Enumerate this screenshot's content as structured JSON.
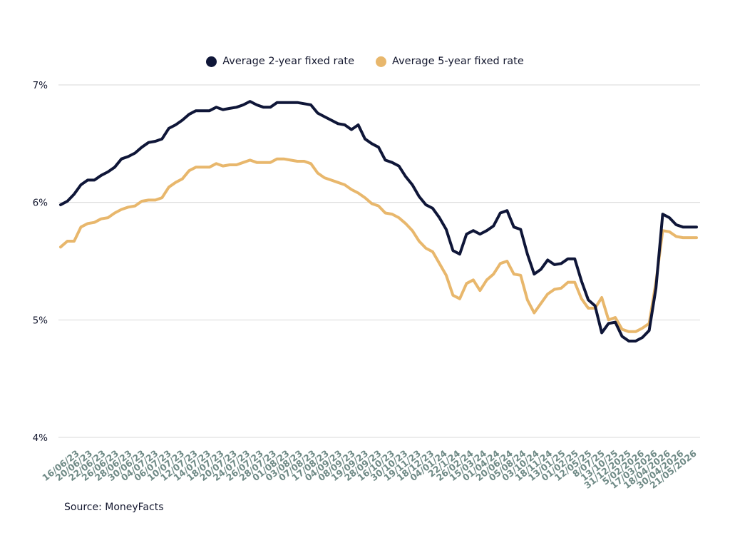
{
  "legend": {
    "series_2y": "Average 2-year fixed rate",
    "series_5y": "Average 5-year fixed rate"
  },
  "colors": {
    "series_2y": "#0f1638",
    "series_5y": "#e8b76c",
    "grid": "#d9d9d9"
  },
  "source": "Source: MoneyFacts",
  "chart_data": {
    "type": "line",
    "title": "",
    "xlabel": "",
    "ylabel": "",
    "ylim": [
      4,
      7
    ],
    "y_ticks": [
      "4%",
      "5%",
      "6%",
      "7%"
    ],
    "y_tick_values": [
      4,
      5,
      6,
      7
    ],
    "grid": true,
    "legend_position": "top-center",
    "x_tick_labels": [
      "16/06/23",
      "20/06/23",
      "22/06/23",
      "26/06/23",
      "28/06/23",
      "30/06/23",
      "04/07/23",
      "06/07/23",
      "10/07/23",
      "12/07/23",
      "14/07/23",
      "18/07/23",
      "20/07/23",
      "24/07/23",
      "26/07/23",
      "28/07/23",
      "01/08/23",
      "03/08/23",
      "07/08/23",
      "17/08/23",
      "04/09/23",
      "08/09/23",
      "19/09/23",
      "28/09/23",
      "16/10/23",
      "30/10/23",
      "19/11/23",
      "18/12/23",
      "04/01/24",
      "22/1/24",
      "26/02/24",
      "15/03/24",
      "01/04/24",
      "20/06/24",
      "05/08/24",
      "03/10/24",
      "18/11/24",
      "13/01/25",
      "01/02/25",
      "12/05/25",
      "8/07/25",
      "13/10/25",
      "31/12/2025",
      "5/02/2026",
      "17/03/2026",
      "18/04/2026",
      "30/04/2026",
      "21/05/2026"
    ],
    "series": [
      {
        "name": "Average 2-year fixed rate",
        "values": [
          5.98,
          6.01,
          6.07,
          6.15,
          6.19,
          6.19,
          6.23,
          6.26,
          6.3,
          6.37,
          6.39,
          6.42,
          6.47,
          6.51,
          6.52,
          6.54,
          6.63,
          6.66,
          6.7,
          6.75,
          6.78,
          6.78,
          6.78,
          6.81,
          6.79,
          6.8,
          6.81,
          6.83,
          6.86,
          6.83,
          6.81,
          6.81,
          6.85,
          6.85,
          6.85,
          6.85,
          6.84,
          6.83,
          6.76,
          6.73,
          6.7,
          6.67,
          6.66,
          6.62,
          6.66,
          6.54,
          6.5,
          6.47,
          6.36,
          6.34,
          6.31,
          6.22,
          6.15,
          6.05,
          5.98,
          5.95,
          5.87,
          5.77,
          5.59,
          5.56,
          5.73,
          5.76,
          5.73,
          5.76,
          5.8,
          5.91,
          5.93,
          5.79,
          5.77,
          5.56,
          5.39,
          5.43,
          5.51,
          5.47,
          5.48,
          5.52,
          5.52,
          5.33,
          5.17,
          5.12,
          4.89,
          4.97,
          4.98,
          4.86,
          4.82,
          4.82,
          4.85,
          4.91,
          5.27,
          5.9,
          5.87,
          5.81,
          5.79,
          5.79,
          5.79
        ]
      },
      {
        "name": "Average 5-year fixed rate",
        "values": [
          5.62,
          5.67,
          5.67,
          5.79,
          5.82,
          5.83,
          5.86,
          5.87,
          5.91,
          5.94,
          5.96,
          5.97,
          6.01,
          6.02,
          6.02,
          6.04,
          6.13,
          6.17,
          6.2,
          6.27,
          6.3,
          6.3,
          6.3,
          6.33,
          6.31,
          6.32,
          6.32,
          6.34,
          6.36,
          6.34,
          6.34,
          6.34,
          6.37,
          6.37,
          6.36,
          6.35,
          6.35,
          6.33,
          6.25,
          6.21,
          6.19,
          6.17,
          6.15,
          6.11,
          6.08,
          6.04,
          5.99,
          5.97,
          5.91,
          5.9,
          5.87,
          5.82,
          5.76,
          5.67,
          5.61,
          5.58,
          5.48,
          5.38,
          5.21,
          5.18,
          5.31,
          5.34,
          5.25,
          5.34,
          5.39,
          5.48,
          5.5,
          5.39,
          5.38,
          5.17,
          5.06,
          5.14,
          5.22,
          5.26,
          5.27,
          5.32,
          5.32,
          5.18,
          5.1,
          5.1,
          5.19,
          5.0,
          5.02,
          4.92,
          4.9,
          4.9,
          4.93,
          4.97,
          5.32,
          5.76,
          5.75,
          5.71,
          5.7,
          5.7,
          5.7
        ]
      }
    ]
  }
}
